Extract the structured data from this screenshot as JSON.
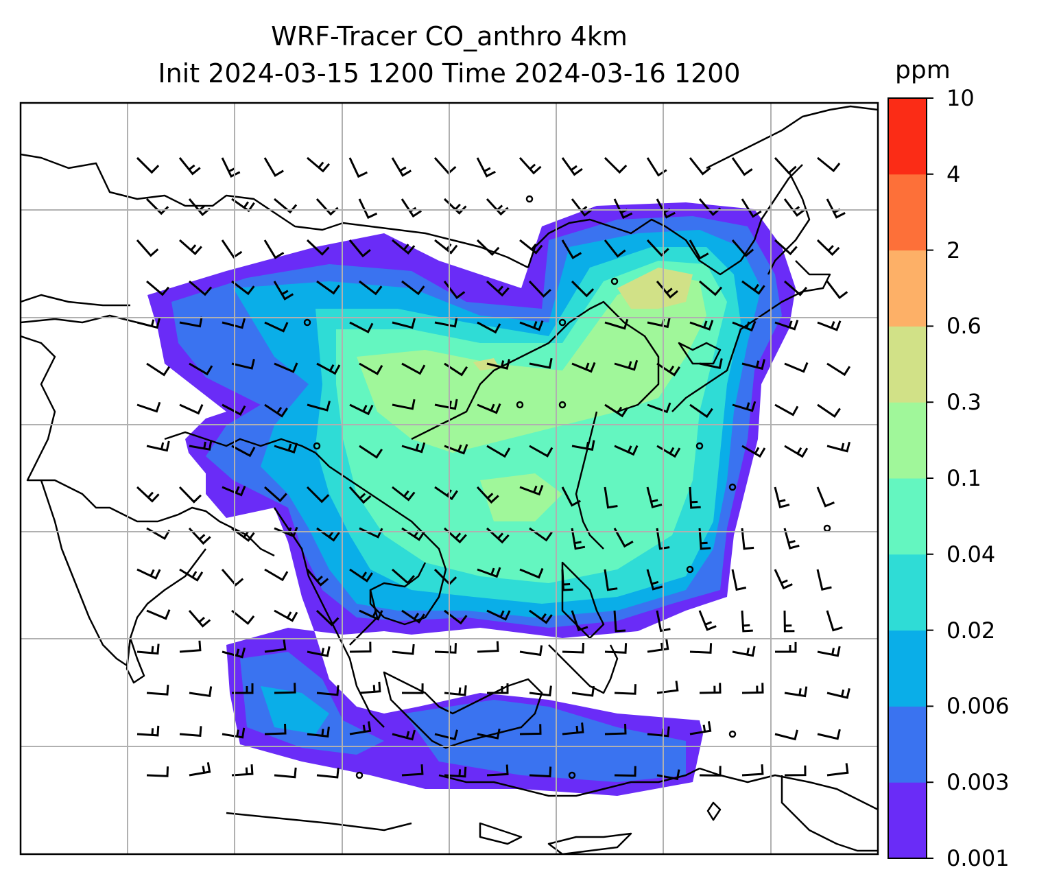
{
  "title": {
    "line1": "WRF-Tracer CO_anthro 4km",
    "line2": "Init 2024-03-15 1200 Time 2024-03-16 1200"
  },
  "colorbar": {
    "units": "ppm",
    "levels": [
      "0.001",
      "0.003",
      "0.006",
      "0.02",
      "0.04",
      "0.1",
      "0.3",
      "0.6",
      "2",
      "4",
      "10"
    ],
    "colors": [
      "#6a2cf7",
      "#3a73f0",
      "#0aaee8",
      "#2fdcd6",
      "#64f6c0",
      "#a0f79a",
      "#d1e187",
      "#fdb067",
      "#fd7039",
      "#fb2c16"
    ]
  },
  "map": {
    "background": "#ffffff",
    "gridline_color": "#b0b0b0",
    "coastline_color": "#000000",
    "wind_barb_color": "#000000"
  }
}
